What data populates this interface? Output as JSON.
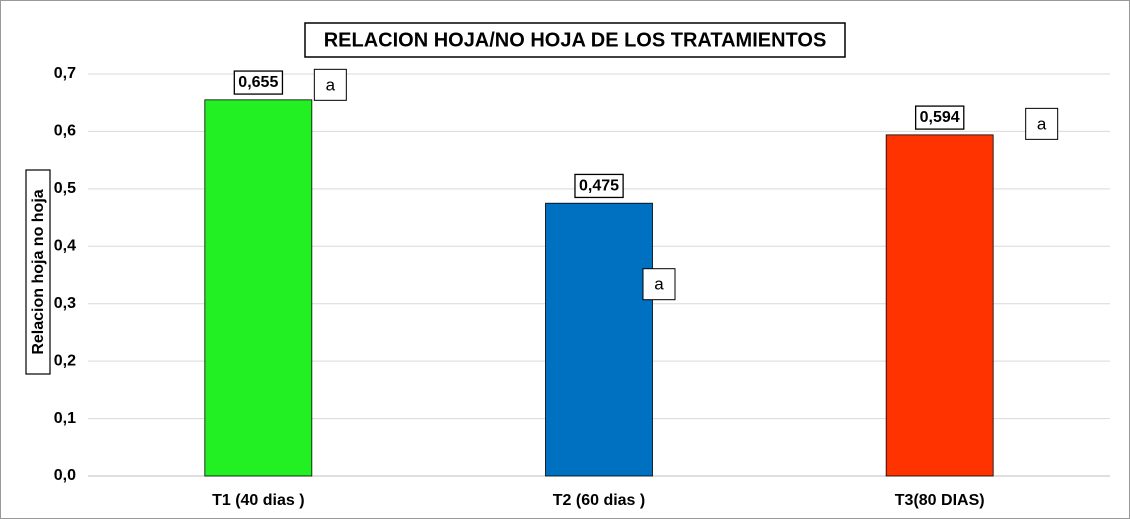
{
  "chart_data": {
    "type": "bar",
    "title": "RELACION HOJA/NO HOJA DE LOS TRATAMIENTOS",
    "y_label": "Relacion hoja no hoja",
    "categories": [
      "T1 (40 dias )",
      "T2 (60 dias )",
      "T3(80 DIAS)"
    ],
    "values": [
      0.655,
      0.475,
      0.594
    ],
    "value_labels": [
      "0,655",
      "0,475",
      "0,594"
    ],
    "colors": [
      "#22f022",
      "#0070c0",
      "#ff3300"
    ],
    "annotations": [
      "a",
      "a",
      "a"
    ],
    "ylim": [
      0,
      0.7
    ],
    "yticks": [
      {
        "value": 0,
        "label": "0,0"
      },
      {
        "value": 0.1,
        "label": "0,1"
      },
      {
        "value": 0.2,
        "label": "0,2"
      },
      {
        "value": 0.3,
        "label": "0,3"
      },
      {
        "value": 0.4,
        "label": "0,4"
      },
      {
        "value": 0.5,
        "label": "0,5"
      },
      {
        "value": 0.6,
        "label": "0,6"
      },
      {
        "value": 0.7,
        "label": "0,7"
      }
    ],
    "grid": true
  }
}
